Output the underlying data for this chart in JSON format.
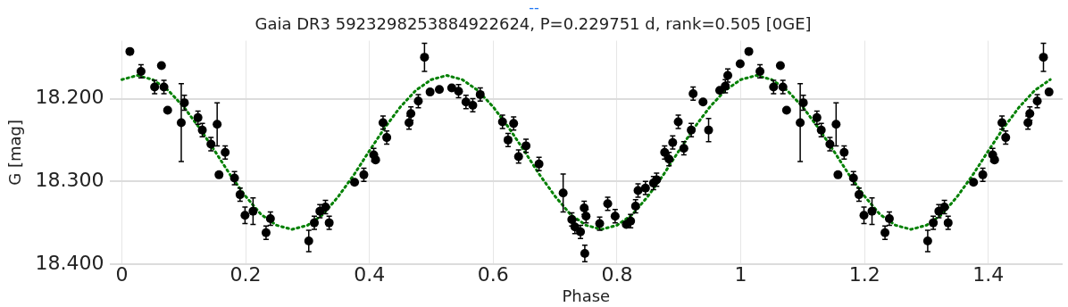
{
  "chart_data": {
    "type": "scatter",
    "title": "Gaia DR3 5923298253884922624, P=0.229751 d, rank=0.505 [0GE]",
    "xlabel": "Phase",
    "ylabel": "G [mag]",
    "annotations": [
      "--"
    ],
    "xlim": [
      -0.02,
      1.52
    ],
    "ylim": [
      18.4,
      18.13
    ],
    "xticks": [
      0,
      0.2,
      0.4,
      0.6,
      0.8,
      1,
      1.2,
      1.4
    ],
    "yticks": [
      {
        "value": 18.2,
        "label": "18.200"
      },
      {
        "value": 18.3,
        "label": "18.300"
      },
      {
        "value": 18.4,
        "label": "18.400"
      }
    ],
    "grid": true,
    "legend": false,
    "series": [
      {
        "color": "#000000",
        "marker": "circle",
        "x": [
          0.013,
          0.031,
          0.064,
          0.053,
          0.068,
          0.074,
          0.101,
          0.096,
          0.123,
          0.13,
          0.154,
          0.144,
          0.167,
          0.157,
          0.182,
          0.191,
          0.199,
          0.212,
          0.24,
          0.233,
          0.302,
          0.311,
          0.32,
          0.329,
          0.335,
          0.376,
          0.391,
          0.407,
          0.41,
          0.422,
          0.428,
          0.464,
          0.467,
          0.479,
          0.489,
          0.498,
          0.513,
          0.533,
          0.544,
          0.556,
          0.567,
          0.579,
          0.615,
          0.633,
          0.624,
          0.653,
          0.641,
          0.674,
          0.713,
          0.727,
          0.732,
          0.741,
          0.747,
          0.748,
          0.75,
          0.772,
          0.785,
          0.797,
          0.815,
          0.822,
          0.83,
          0.834,
          0.846,
          0.859,
          0.864,
          0.877,
          0.884,
          0.89,
          0.899,
          0.908,
          0.92,
          0.923,
          0.939,
          0.948,
          0.966,
          0.975,
          0.979,
          0.999,
          1.013,
          1.031,
          1.064,
          1.053,
          1.068,
          1.074,
          1.101,
          1.096,
          1.123,
          1.13,
          1.154,
          1.144,
          1.167,
          1.157,
          1.182,
          1.191,
          1.199,
          1.212,
          1.24,
          1.233,
          1.302,
          1.311,
          1.32,
          1.329,
          1.335,
          1.376,
          1.391,
          1.407,
          1.41,
          1.422,
          1.428,
          1.464,
          1.467,
          1.479,
          1.489,
          1.498
        ],
        "values": [
          18.143,
          18.167,
          18.16,
          18.186,
          18.186,
          18.214,
          18.205,
          18.229,
          18.223,
          18.238,
          18.231,
          18.255,
          18.265,
          18.292,
          18.296,
          18.316,
          18.341,
          18.336,
          18.345,
          18.362,
          18.372,
          18.35,
          18.336,
          18.331,
          18.35,
          18.301,
          18.292,
          18.268,
          18.274,
          18.229,
          18.247,
          18.229,
          18.218,
          18.203,
          18.15,
          18.192,
          18.189,
          18.187,
          18.191,
          18.204,
          18.208,
          18.195,
          18.228,
          18.23,
          18.25,
          18.257,
          18.27,
          18.279,
          18.314,
          18.346,
          18.355,
          18.361,
          18.332,
          18.387,
          18.342,
          18.351,
          18.327,
          18.342,
          18.352,
          18.348,
          18.33,
          18.311,
          18.308,
          18.302,
          18.298,
          18.265,
          18.273,
          18.253,
          18.228,
          18.26,
          18.238,
          18.194,
          18.204,
          18.238,
          18.19,
          18.185,
          18.172,
          18.158,
          18.143,
          18.167,
          18.16,
          18.186,
          18.186,
          18.214,
          18.205,
          18.229,
          18.223,
          18.238,
          18.231,
          18.255,
          18.265,
          18.292,
          18.296,
          18.316,
          18.341,
          18.336,
          18.345,
          18.362,
          18.372,
          18.35,
          18.336,
          18.331,
          18.35,
          18.301,
          18.292,
          18.268,
          18.274,
          18.229,
          18.247,
          18.229,
          18.218,
          18.203,
          18.15,
          18.192
        ],
        "errors": [
          null,
          0.008,
          null,
          0.008,
          0.008,
          null,
          0.009,
          0.047,
          0.008,
          0.008,
          0.026,
          0.008,
          0.008,
          null,
          0.008,
          0.008,
          0.01,
          0.016,
          0.008,
          0.008,
          0.013,
          0.008,
          0.008,
          0.008,
          0.008,
          null,
          0.008,
          0.008,
          null,
          0.008,
          0.008,
          0.008,
          0.008,
          0.008,
          0.017,
          null,
          null,
          null,
          0.008,
          0.008,
          0.008,
          0.008,
          0.008,
          0.008,
          0.008,
          0.008,
          0.008,
          0.008,
          0.023,
          0.008,
          0.008,
          0.008,
          0.008,
          0.01,
          0.008,
          0.008,
          0.008,
          0.008,
          null,
          0.008,
          0.008,
          0.008,
          0.008,
          0.008,
          0.008,
          0.008,
          0.008,
          0.008,
          0.008,
          0.008,
          0.008,
          0.008,
          null,
          0.014,
          null,
          0.008,
          0.008,
          null,
          null,
          0.008,
          null,
          0.008,
          0.008,
          null,
          0.009,
          0.047,
          0.008,
          0.008,
          0.026,
          0.008,
          0.008,
          null,
          0.008,
          0.008,
          0.01,
          0.016,
          0.008,
          0.008,
          0.013,
          0.008,
          0.008,
          0.008,
          0.008,
          null,
          0.008,
          0.008,
          null,
          0.008,
          0.008,
          0.008,
          0.008,
          0.008,
          0.017,
          null
        ]
      },
      {
        "type": "line",
        "color": "#008000",
        "line_style": "dotted",
        "marker": "none",
        "x": [
          0,
          0.025,
          0.05,
          0.075,
          0.1,
          0.125,
          0.15,
          0.175,
          0.2,
          0.225,
          0.25,
          0.275,
          0.3,
          0.325,
          0.35,
          0.375,
          0.4,
          0.425,
          0.45,
          0.475,
          0.5,
          0.525,
          0.55,
          0.575,
          0.6,
          0.625,
          0.65,
          0.675,
          0.7,
          0.725,
          0.75,
          0.775,
          0.8,
          0.825,
          0.85,
          0.875,
          0.9,
          0.925,
          0.95,
          0.975,
          1,
          1.025,
          1.05,
          1.075,
          1.1,
          1.125,
          1.15,
          1.175,
          1.2,
          1.225,
          1.25,
          1.275,
          1.3,
          1.325,
          1.35,
          1.375,
          1.4,
          1.425,
          1.45,
          1.475,
          1.5
        ],
        "values": [
          18.177,
          18.172,
          18.177,
          18.19,
          18.21,
          18.235,
          18.263,
          18.292,
          18.318,
          18.34,
          18.353,
          18.358,
          18.353,
          18.34,
          18.318,
          18.292,
          18.263,
          18.235,
          18.21,
          18.19,
          18.177,
          18.172,
          18.177,
          18.19,
          18.21,
          18.235,
          18.263,
          18.292,
          18.318,
          18.34,
          18.353,
          18.358,
          18.353,
          18.34,
          18.318,
          18.292,
          18.263,
          18.235,
          18.21,
          18.19,
          18.177,
          18.172,
          18.177,
          18.19,
          18.21,
          18.235,
          18.263,
          18.292,
          18.318,
          18.34,
          18.353,
          18.358,
          18.353,
          18.34,
          18.318,
          18.292,
          18.263,
          18.235,
          18.21,
          18.19,
          18.177
        ]
      }
    ]
  }
}
